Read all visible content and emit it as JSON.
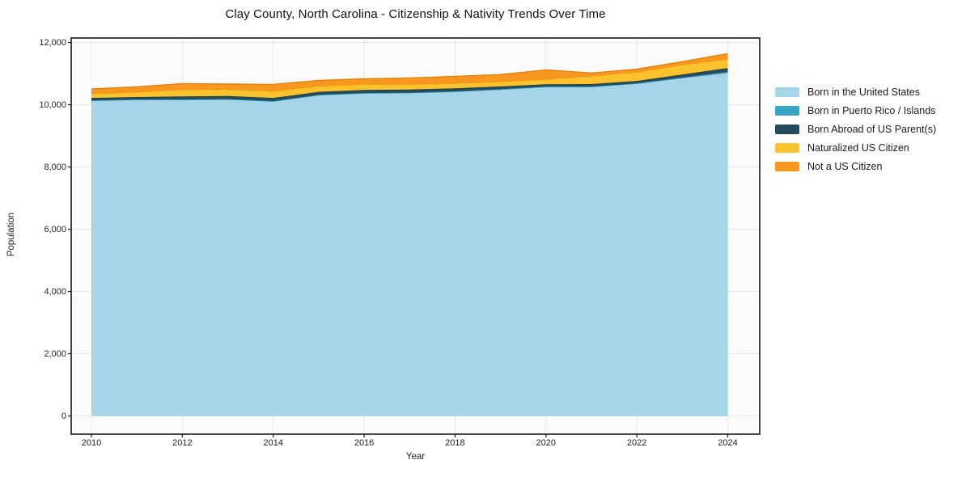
{
  "title": "Clay County, North Carolina - Citizenship & Nativity Trends Over Time",
  "chart_data": {
    "type": "area",
    "stacked": true,
    "title": "Clay County, North Carolina - Citizenship & Nativity Trends Over Time",
    "xlabel": "Year",
    "ylabel": "Population",
    "x": [
      2010,
      2011,
      2012,
      2013,
      2014,
      2015,
      2016,
      2017,
      2018,
      2019,
      2020,
      2021,
      2022,
      2023,
      2024
    ],
    "series": [
      {
        "name": "Born in the United States",
        "color": "#a5d5e8",
        "edge": "#8cc3db",
        "values": [
          10130,
          10160,
          10160,
          10175,
          10110,
          10310,
          10370,
          10380,
          10420,
          10490,
          10575,
          10575,
          10680,
          10860,
          11020
        ]
      },
      {
        "name": "Born in Puerto Rico / Islands",
        "color": "#38a5c4",
        "edge": "#2e90ad",
        "values": [
          10,
          10,
          10,
          10,
          10,
          10,
          10,
          10,
          10,
          10,
          10,
          10,
          10,
          15,
          40
        ]
      },
      {
        "name": "Born Abroad of US Parent(s)",
        "color": "#254b5e",
        "edge": "#1c3c4c",
        "values": [
          80,
          80,
          100,
          95,
          100,
          95,
          95,
          100,
          100,
          90,
          75,
          80,
          75,
          100,
          120
        ]
      },
      {
        "name": "Naturalized US Citizen",
        "color": "#fcc32f",
        "edge": "#eaad12",
        "values": [
          130,
          155,
          210,
          210,
          210,
          185,
          180,
          165,
          155,
          150,
          150,
          255,
          280,
          305,
          285
        ]
      },
      {
        "name": "Not a US Citizen",
        "color": "#f8971f",
        "edge": "#e5830c",
        "values": [
          160,
          170,
          200,
          175,
          225,
          185,
          180,
          205,
          230,
          230,
          310,
          100,
          100,
          105,
          180
        ]
      }
    ],
    "xticks": [
      2010,
      2012,
      2014,
      2016,
      2018,
      2020,
      2022,
      2024
    ],
    "xtick_labels": [
      "2010",
      "2012",
      "2014",
      "2016",
      "2018",
      "2020",
      "2022",
      "2024"
    ],
    "yticks": [
      0,
      2000,
      4000,
      6000,
      8000,
      10000,
      12000
    ],
    "ytick_labels": [
      "0",
      "2,000",
      "4,000",
      "6,000",
      "8,000",
      "10,000",
      "12,000"
    ],
    "ylim": [
      0,
      12000
    ],
    "grid": true,
    "legend_position": "right"
  },
  "colors": {
    "plot_background": "#fbfbfb",
    "grid": "#e8e8e8",
    "border": "#1a1a1a",
    "text": "#222222"
  }
}
